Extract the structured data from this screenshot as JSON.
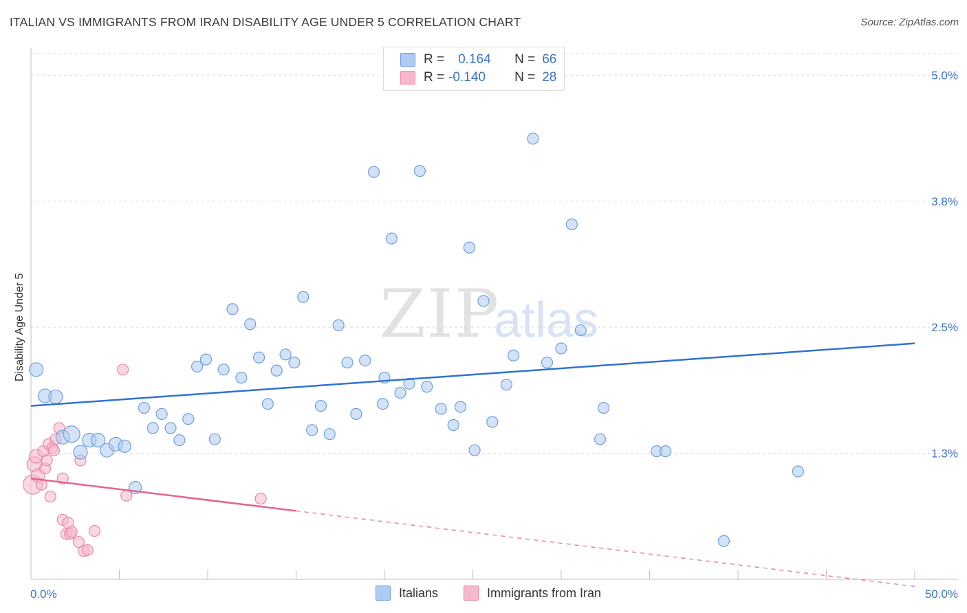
{
  "header": {
    "title": "ITALIAN VS IMMIGRANTS FROM IRAN DISABILITY AGE UNDER 5 CORRELATION CHART",
    "source": "Source: ZipAtlas.com"
  },
  "watermark": {
    "zip": "ZIP",
    "atlas": "atlas"
  },
  "legend": {
    "rows": [
      {
        "r_label": "R =",
        "r_value": "0.164",
        "n_label": "N =",
        "n_value": "66",
        "color": "#aecbf0"
      },
      {
        "r_label": "R =",
        "r_value": "-0.140",
        "n_label": "N =",
        "n_value": "28",
        "color": "#f6b8cb"
      }
    ]
  },
  "bottom_legend": {
    "items": [
      {
        "label": "Italians",
        "color": "#aecbf0"
      },
      {
        "label": "Immigrants from Iran",
        "color": "#f6b8cb"
      }
    ]
  },
  "colors": {
    "blue_fill": "#aecbf0",
    "blue_stroke": "#6d9fde",
    "blue_line": "#2f73d0",
    "pink_fill": "#f6b8cb",
    "pink_stroke": "#ea86a5",
    "pink_line": "#e4648f",
    "tick_label": "#3b74c9",
    "grid": "#d9d9d9"
  },
  "chart_data": {
    "type": "scatter",
    "title": "ITALIAN VS IMMIGRANTS FROM IRAN DISABILITY AGE UNDER 5 CORRELATION CHART",
    "xlabel": "",
    "ylabel": "Disability Age Under 5",
    "xlim": [
      0,
      50
    ],
    "ylim": [
      0,
      5.2
    ],
    "x_tick_labels": [
      "0.0%",
      "50.0%"
    ],
    "y_ticks": [
      1.25,
      2.5,
      3.75,
      5.0
    ],
    "y_tick_labels": [
      "1.3%",
      "2.5%",
      "3.8%",
      "5.0%"
    ],
    "grid": "horizontal dashed",
    "legend_position": "top-center",
    "series": [
      {
        "name": "Italians",
        "r": 0.164,
        "n": 66,
        "trend": {
          "x": [
            0,
            50
          ],
          "y": [
            1.72,
            2.34
          ],
          "dashed_from": null
        },
        "points": [
          [
            0.3,
            2.08,
            10
          ],
          [
            0.8,
            1.82,
            10
          ],
          [
            1.4,
            1.81,
            10
          ],
          [
            1.8,
            1.41,
            10
          ],
          [
            2.3,
            1.44,
            12
          ],
          [
            2.8,
            1.26,
            10
          ],
          [
            3.3,
            1.38,
            10
          ],
          [
            3.8,
            1.38,
            10
          ],
          [
            4.3,
            1.28,
            10
          ],
          [
            4.8,
            1.34,
            10
          ],
          [
            5.3,
            1.32,
            9
          ],
          [
            5.9,
            0.91,
            9
          ],
          [
            6.4,
            1.7,
            8
          ],
          [
            6.9,
            1.5,
            8
          ],
          [
            7.4,
            1.64,
            8
          ],
          [
            7.9,
            1.5,
            8
          ],
          [
            8.4,
            1.38,
            8
          ],
          [
            8.9,
            1.59,
            8
          ],
          [
            9.4,
            2.11,
            8
          ],
          [
            9.9,
            2.18,
            8
          ],
          [
            10.4,
            1.39,
            8
          ],
          [
            10.9,
            2.08,
            8
          ],
          [
            11.4,
            2.68,
            8
          ],
          [
            11.9,
            2.0,
            8
          ],
          [
            12.4,
            2.53,
            8
          ],
          [
            12.9,
            2.2,
            8
          ],
          [
            13.4,
            1.74,
            8
          ],
          [
            13.9,
            2.07,
            8
          ],
          [
            14.4,
            2.23,
            8
          ],
          [
            14.9,
            2.15,
            8
          ],
          [
            15.4,
            2.8,
            8
          ],
          [
            15.9,
            1.48,
            8
          ],
          [
            16.4,
            1.72,
            8
          ],
          [
            16.9,
            1.44,
            8
          ],
          [
            17.4,
            2.52,
            8
          ],
          [
            17.9,
            2.15,
            8
          ],
          [
            18.4,
            1.64,
            8
          ],
          [
            18.9,
            2.17,
            8
          ],
          [
            19.4,
            4.04,
            8
          ],
          [
            19.9,
            1.74,
            8
          ],
          [
            20.0,
            2.0,
            8
          ],
          [
            20.4,
            3.38,
            8
          ],
          [
            20.9,
            1.85,
            8
          ],
          [
            21.4,
            1.94,
            8
          ],
          [
            22.0,
            4.05,
            8
          ],
          [
            22.4,
            1.91,
            8
          ],
          [
            23.2,
            1.69,
            8
          ],
          [
            23.9,
            1.53,
            8
          ],
          [
            24.3,
            1.71,
            8
          ],
          [
            24.8,
            3.29,
            8
          ],
          [
            25.1,
            1.28,
            8
          ],
          [
            25.6,
            2.76,
            8
          ],
          [
            26.1,
            1.56,
            8
          ],
          [
            26.9,
            1.93,
            8
          ],
          [
            27.3,
            2.22,
            8
          ],
          [
            28.4,
            4.37,
            8
          ],
          [
            29.2,
            2.15,
            8
          ],
          [
            30.0,
            2.29,
            8
          ],
          [
            30.6,
            3.52,
            8
          ],
          [
            31.1,
            2.47,
            8
          ],
          [
            32.2,
            1.39,
            8
          ],
          [
            32.4,
            1.7,
            8
          ],
          [
            35.4,
            1.27,
            8
          ],
          [
            35.9,
            1.27,
            8
          ],
          [
            43.4,
            1.07,
            8
          ],
          [
            39.2,
            0.38,
            8
          ]
        ]
      },
      {
        "name": "Immigrants from Iran",
        "r": -0.14,
        "n": 28,
        "trend": {
          "x": [
            0,
            50
          ],
          "y": [
            1.0,
            -0.07
          ],
          "dashed_from": 15
        },
        "points": [
          [
            0.1,
            0.94,
            14
          ],
          [
            0.2,
            1.14,
            11
          ],
          [
            0.3,
            1.22,
            10
          ],
          [
            0.4,
            1.03,
            10
          ],
          [
            0.6,
            0.94,
            8
          ],
          [
            0.7,
            1.27,
            8
          ],
          [
            0.8,
            1.1,
            8
          ],
          [
            0.9,
            1.18,
            8
          ],
          [
            1.0,
            1.34,
            8
          ],
          [
            1.1,
            0.82,
            8
          ],
          [
            1.2,
            1.3,
            8
          ],
          [
            1.3,
            1.28,
            8
          ],
          [
            1.4,
            1.39,
            8
          ],
          [
            1.6,
            1.5,
            8
          ],
          [
            1.8,
            1.0,
            8
          ],
          [
            1.8,
            0.59,
            8
          ],
          [
            2.0,
            0.45,
            8
          ],
          [
            2.1,
            0.56,
            8
          ],
          [
            2.2,
            0.45,
            8
          ],
          [
            2.3,
            0.47,
            8
          ],
          [
            2.7,
            0.37,
            8
          ],
          [
            2.8,
            1.18,
            8
          ],
          [
            3.0,
            0.28,
            8
          ],
          [
            3.2,
            0.29,
            8
          ],
          [
            3.6,
            0.48,
            8
          ],
          [
            5.2,
            2.08,
            8
          ],
          [
            5.4,
            0.83,
            8
          ],
          [
            13.0,
            0.8,
            8
          ]
        ]
      }
    ]
  }
}
